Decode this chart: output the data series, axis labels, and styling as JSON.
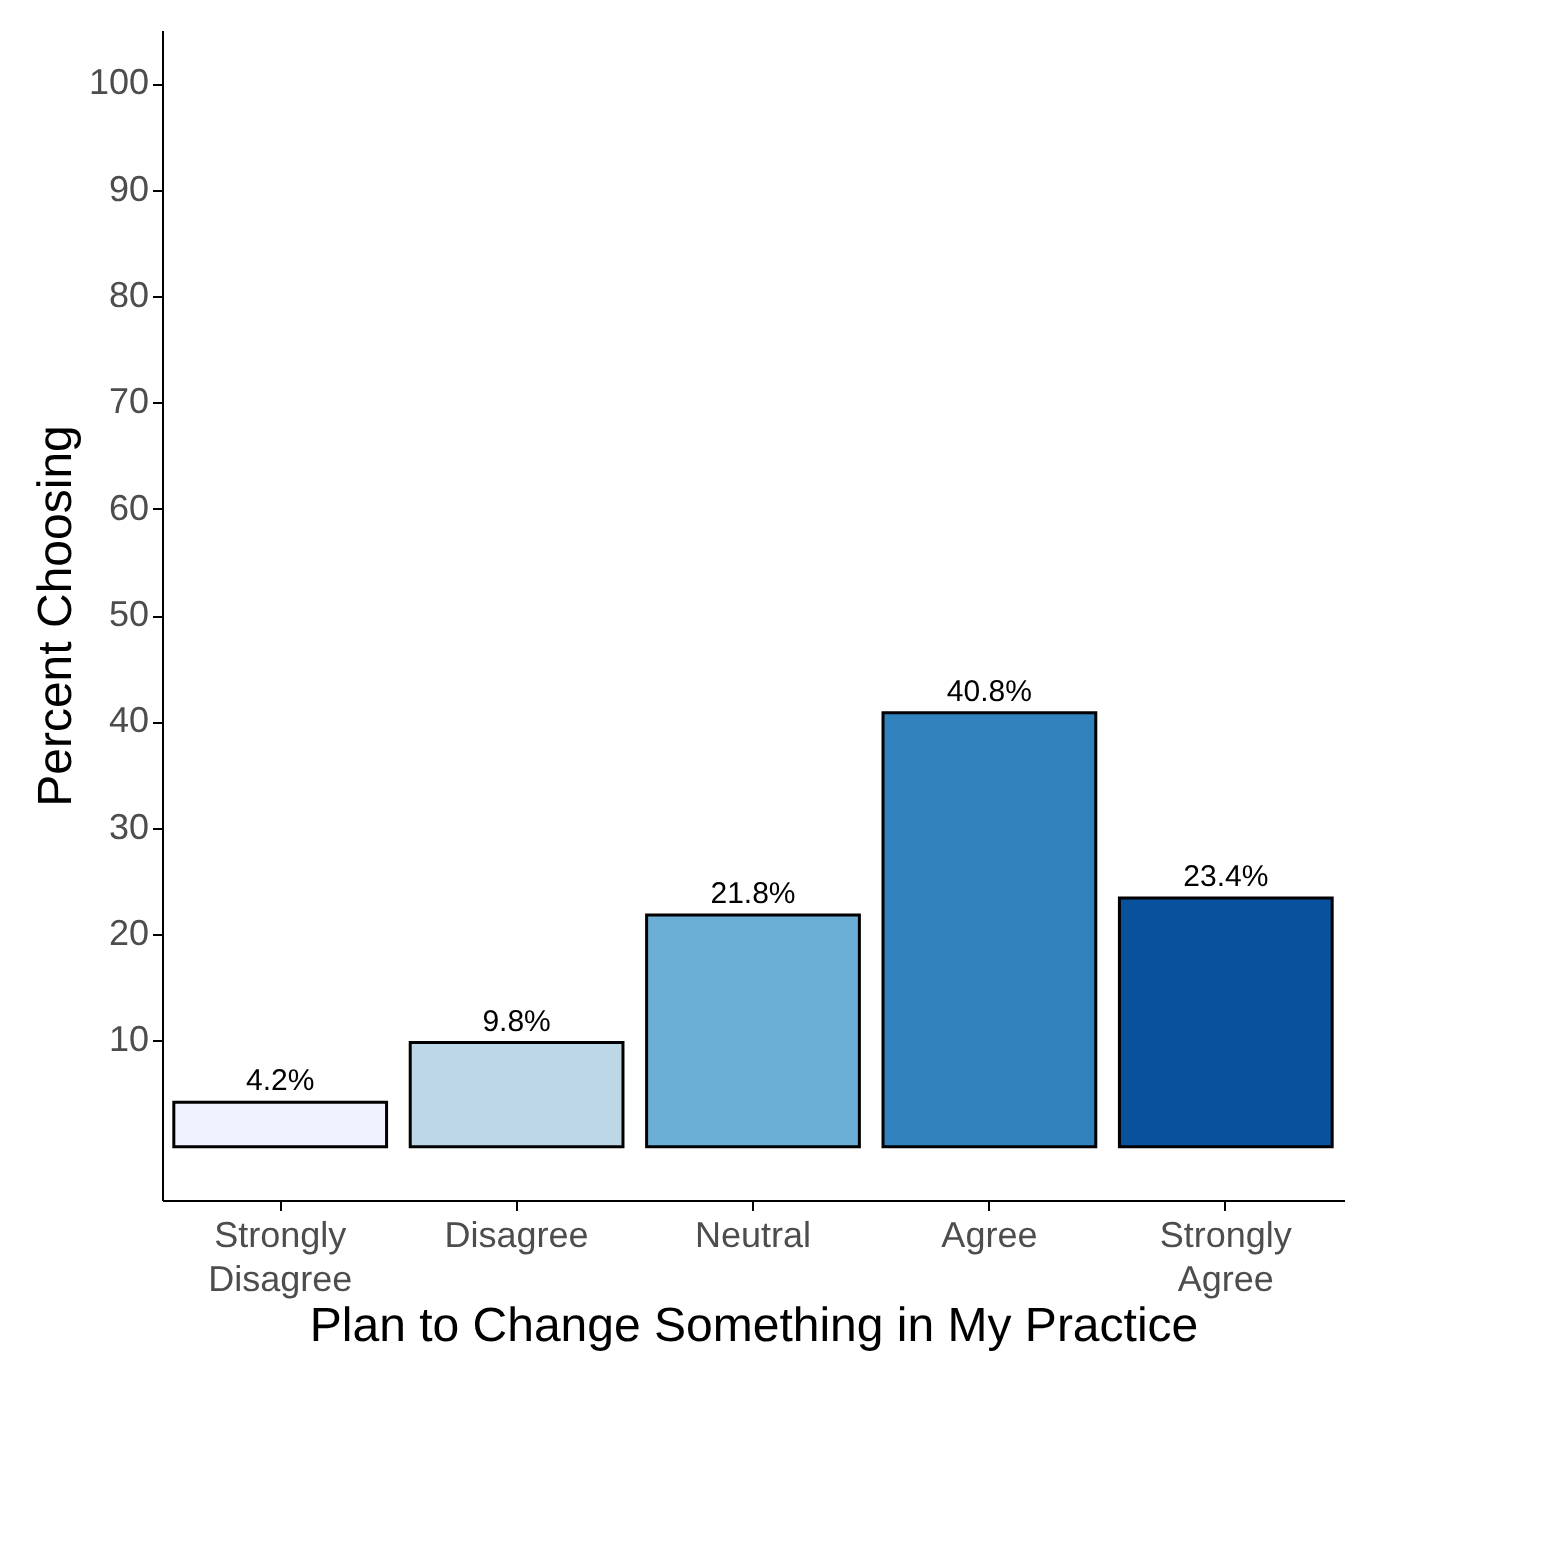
{
  "chart_data": {
    "type": "bar",
    "xlabel": "Plan to Change Something in My Practice",
    "ylabel": "Percent Choosing",
    "categories": [
      "Strongly Disagree",
      "Disagree",
      "Neutral",
      "Agree",
      "Strongly Agree"
    ],
    "values": [
      4.2,
      9.8,
      21.8,
      40.8,
      23.4
    ],
    "colors": [
      "#eff3ff",
      "#bdd7e7",
      "#6baed6",
      "#3182bd",
      "#08519c"
    ],
    "value_labels": [
      "4.2%",
      "9.8%",
      "21.8%",
      "40.8%",
      "23.4%"
    ],
    "ylim": [
      -5,
      105
    ],
    "yticks": [
      10,
      20,
      30,
      40,
      50,
      60,
      70,
      80,
      90,
      100
    ],
    "grid": false
  }
}
